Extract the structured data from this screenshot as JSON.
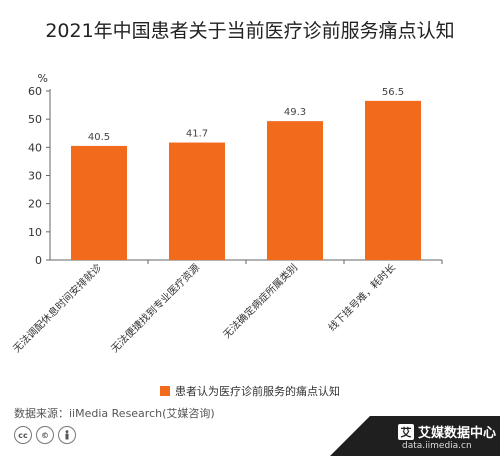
{
  "chart_data": {
    "type": "bar",
    "title": "2021年中国患者关于当前医疗诊前服务痛点认知",
    "ylabel": "%",
    "categories": [
      "无法调配休息时间安排就诊",
      "无法便捷找到专业医疗资源",
      "无法确定病症所属类别",
      "线下挂号难，耗时长"
    ],
    "series": [
      {
        "name": "患者认为医疗诊前服务的痛点认知",
        "values": [
          40.5,
          41.7,
          49.3,
          56.5
        ],
        "color": "#f26b1d"
      }
    ],
    "ylim": [
      0,
      60
    ],
    "yticks": [
      0,
      10,
      20,
      30,
      40,
      50,
      60
    ],
    "grid": false,
    "legend_position": "bottom"
  },
  "footer": {
    "source": "数据来源：iiMedia Research(艾媒咨询)",
    "license_icons": [
      "creative-commons-icon",
      "cc-badge-icon",
      "attribution-icon"
    ],
    "brand_name": "艾媒数据中心",
    "brand_url": "data.iimedia.cn",
    "brand_logo_char": "艾"
  }
}
